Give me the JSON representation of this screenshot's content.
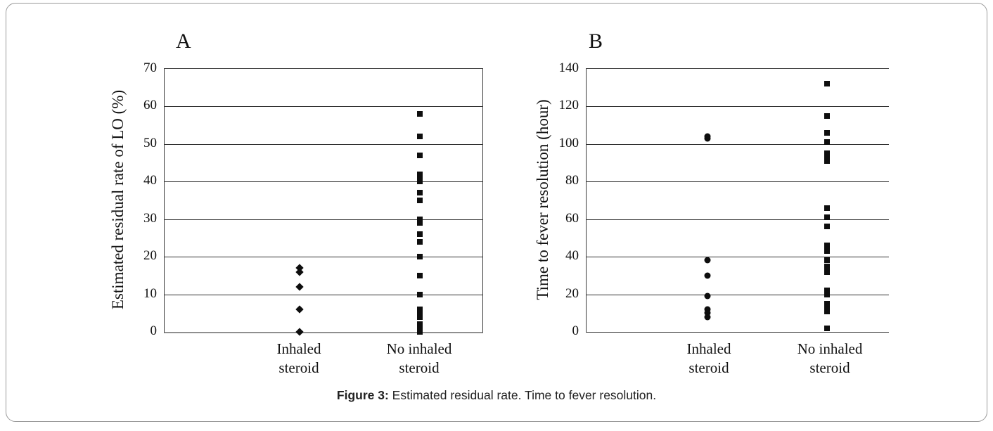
{
  "figure": {
    "caption_label": "Figure 3:",
    "caption_text": " Estimated residual rate. Time to fever resolution."
  },
  "chart_data": [
    {
      "type": "scatter",
      "panel": "A",
      "ylabel": "Estimated residual rate of LO (%)",
      "ylim": [
        0,
        70
      ],
      "yticks": [
        0,
        10,
        20,
        30,
        40,
        50,
        60,
        70
      ],
      "grid": true,
      "legend": "none",
      "categories": [
        "Inhaled steroid",
        "No inhaled steroid"
      ],
      "categories_lines": [
        [
          "Inhaled",
          "steroid"
        ],
        [
          "No inhaled",
          "steroid"
        ]
      ],
      "series": [
        {
          "name": "Inhaled steroid",
          "marker": "diamond",
          "values": [
            17,
            16,
            12,
            6,
            0
          ]
        },
        {
          "name": "No inhaled steroid",
          "marker": "square",
          "values": [
            58,
            52,
            47,
            42,
            41,
            40,
            37,
            35,
            30,
            29,
            26,
            24,
            20,
            15,
            10,
            6,
            5,
            4,
            2,
            1,
            0
          ]
        }
      ]
    },
    {
      "type": "scatter",
      "panel": "B",
      "ylabel": "Time to fever resolution (hour)",
      "ylim": [
        0,
        140
      ],
      "yticks": [
        0,
        20,
        40,
        60,
        80,
        100,
        120,
        140
      ],
      "grid": true,
      "legend": "none",
      "categories": [
        "Inhaled steroid",
        "No inhaled steroid"
      ],
      "categories_lines": [
        [
          "Inhaled",
          "steroid"
        ],
        [
          "No inhaled",
          "steroid"
        ]
      ],
      "series": [
        {
          "name": "Inhaled steroid",
          "marker": "circle",
          "values": [
            104,
            103,
            38,
            30,
            19,
            12,
            10,
            8
          ]
        },
        {
          "name": "No inhaled steroid",
          "marker": "square",
          "values": [
            132,
            115,
            106,
            101,
            95,
            93,
            91,
            66,
            61,
            56,
            46,
            43,
            38,
            35,
            32,
            22,
            20,
            15,
            13,
            11,
            2
          ]
        }
      ]
    }
  ]
}
